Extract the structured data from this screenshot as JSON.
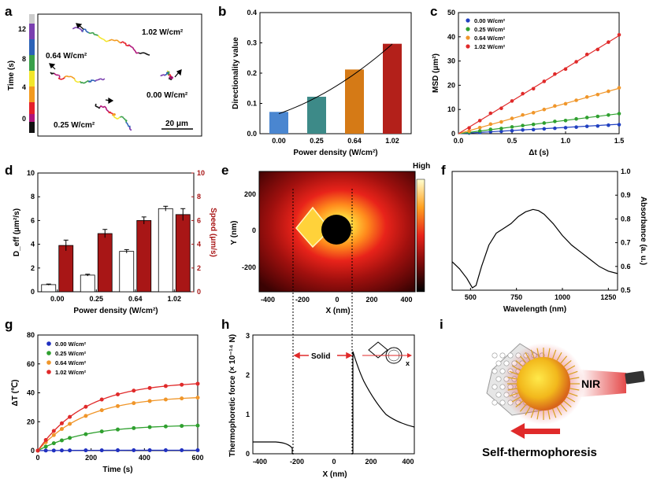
{
  "panels": {
    "a": {
      "label": "a",
      "colorbar_title": "Time (s)",
      "colorbar_ticks": [
        "0",
        "4",
        "8",
        "12"
      ],
      "annotations": [
        "1.02 W/cm²",
        "0.64 W/cm²",
        "0.00 W/cm²",
        "0.25 W/cm²"
      ],
      "scalebar": "20 μm",
      "colors": [
        "#111111",
        "#b0147a",
        "#e5202a",
        "#f39a1e",
        "#f2e62b",
        "#39a04a",
        "#2b62b7",
        "#7a3fb0",
        "#cccccc"
      ]
    },
    "b": {
      "label": "b"
    },
    "c": {
      "label": "c"
    },
    "d": {
      "label": "d"
    },
    "e": {
      "label": "e",
      "ylabel": "Y (nm)",
      "xlabel": "X (nm)",
      "xticks": [
        "-400",
        "-200",
        "0",
        "200",
        "400"
      ],
      "yticks": [
        "200",
        "0",
        "-200"
      ],
      "colorbar_label": "High"
    },
    "f": {
      "label": "f"
    },
    "g": {
      "label": "g"
    },
    "h": {
      "label": "h",
      "ylabel": "Thermophoretic force (× 10⁻¹⁴ N)",
      "xlabel": "X (nm)",
      "solid_label": "Solid",
      "inset_axis": "x",
      "xticks": [
        "-400",
        "-200",
        "0",
        "200",
        "400"
      ],
      "yticks": [
        "0",
        "1",
        "2",
        "3"
      ]
    },
    "i": {
      "label": "i",
      "nir_label": "NIR",
      "caption": "Self-thermophoresis"
    }
  },
  "chart_data": [
    {
      "id": "b",
      "type": "bar",
      "title": "",
      "xlabel": "Power density (W/cm²)",
      "ylabel": "Directionality value",
      "categories": [
        "0.00",
        "0.25",
        "0.64",
        "1.02"
      ],
      "values": [
        0.072,
        0.122,
        0.212,
        0.297
      ],
      "colors": [
        "#4a86d0",
        "#3d8a88",
        "#d57a16",
        "#b3201a"
      ],
      "ylim": [
        0.0,
        0.4
      ],
      "yticks": [
        "0.0",
        "0.1",
        "0.2",
        "0.3",
        "0.4"
      ],
      "fit": true
    },
    {
      "id": "c",
      "type": "scatter",
      "xlabel": "Δt (s)",
      "ylabel": "MSD (μm²)",
      "xlim": [
        0.0,
        1.5
      ],
      "ylim": [
        0,
        50
      ],
      "xticks": [
        "0.0",
        "0.5",
        "1.0",
        "1.5"
      ],
      "yticks": [
        "0",
        "10",
        "20",
        "30",
        "40",
        "50"
      ],
      "legend": "top-left",
      "series": [
        {
          "name": "0.00 W/cm²",
          "color": "#2040c0",
          "slope": 2.6,
          "x": [
            0.1,
            0.2,
            0.3,
            0.4,
            0.5,
            0.6,
            0.7,
            0.8,
            0.9,
            1.0,
            1.1,
            1.2,
            1.3,
            1.4,
            1.5
          ],
          "y": [
            0.3,
            0.5,
            0.8,
            1.0,
            1.2,
            1.5,
            1.7,
            2.0,
            2.2,
            2.5,
            2.7,
            3.0,
            3.2,
            3.5,
            3.7
          ]
        },
        {
          "name": "0.25 W/cm²",
          "color": "#2fa02f",
          "slope": 5.5,
          "x": [
            0.1,
            0.2,
            0.3,
            0.4,
            0.5,
            0.6,
            0.7,
            0.8,
            0.9,
            1.0,
            1.1,
            1.2,
            1.3,
            1.4,
            1.5
          ],
          "y": [
            0.6,
            1.1,
            1.7,
            2.2,
            2.8,
            3.3,
            3.9,
            4.4,
            5.0,
            5.5,
            6.1,
            6.6,
            7.2,
            7.7,
            8.2
          ]
        },
        {
          "name": "0.64 W/cm²",
          "color": "#f0962a",
          "slope": 12.5,
          "x": [
            0.1,
            0.2,
            0.3,
            0.4,
            0.5,
            0.6,
            0.7,
            0.8,
            0.9,
            1.0,
            1.1,
            1.2,
            1.3,
            1.4,
            1.5
          ],
          "y": [
            1.2,
            2.5,
            3.8,
            5.0,
            6.3,
            7.6,
            8.8,
            10.0,
            11.3,
            12.5,
            13.8,
            15.0,
            16.3,
            17.5,
            18.8
          ]
        },
        {
          "name": "1.02 W/cm²",
          "color": "#e02a2a",
          "slope": 27,
          "x": [
            0.1,
            0.2,
            0.3,
            0.4,
            0.5,
            0.6,
            0.7,
            0.8,
            0.9,
            1.0,
            1.1,
            1.2,
            1.3,
            1.4,
            1.5
          ],
          "y": [
            2.7,
            5.4,
            8.1,
            10.8,
            13.5,
            16.2,
            18.9,
            21.6,
            24.3,
            27.0,
            29.7,
            32.4,
            35.1,
            37.8,
            40.5
          ]
        }
      ]
    },
    {
      "id": "d",
      "type": "bar",
      "xlabel": "Power density (W/cm²)",
      "ylabel": "D_eff (μm²/s)",
      "ylabel_right": "Speed (μm/s)",
      "categories": [
        "0.00",
        "0.25",
        "0.64",
        "1.02"
      ],
      "ylim": [
        0,
        10
      ],
      "ylim_right": [
        0,
        10
      ],
      "yticks": [
        "0",
        "2",
        "4",
        "6",
        "8",
        "10"
      ],
      "yticks_right": [
        "0",
        "2",
        "4",
        "6",
        "8",
        "10"
      ],
      "series": [
        {
          "name": "D_eff",
          "color": "#ffffff",
          "values": [
            0.6,
            1.4,
            3.4,
            7.0
          ],
          "errors": [
            0.05,
            0.08,
            0.15,
            0.2
          ]
        },
        {
          "name": "Speed",
          "color": "#a81616",
          "values": [
            3.9,
            4.9,
            6.0,
            6.5
          ],
          "errors": [
            0.45,
            0.35,
            0.3,
            0.5
          ]
        }
      ]
    },
    {
      "id": "f",
      "type": "line",
      "xlabel": "Wavelength (nm)",
      "ylabel": "Absorbance (a. u.)",
      "xlim": [
        400,
        1300
      ],
      "ylim": [
        0.5,
        1.0
      ],
      "xticks": [
        "500",
        "750",
        "1000",
        "1250"
      ],
      "yticks": [
        "0.5",
        "0.6",
        "0.7",
        "0.8",
        "0.9",
        "1.0"
      ],
      "x": [
        400,
        440,
        480,
        510,
        530,
        560,
        600,
        640,
        680,
        720,
        760,
        800,
        840,
        870,
        900,
        950,
        1000,
        1050,
        1100,
        1150,
        1200,
        1250,
        1300
      ],
      "y": [
        0.62,
        0.59,
        0.55,
        0.51,
        0.52,
        0.6,
        0.69,
        0.74,
        0.76,
        0.78,
        0.81,
        0.83,
        0.84,
        0.835,
        0.82,
        0.78,
        0.73,
        0.69,
        0.66,
        0.63,
        0.6,
        0.58,
        0.57
      ]
    },
    {
      "id": "g",
      "type": "scatter",
      "xlabel": "Time (s)",
      "ylabel": "ΔT (℃)",
      "xlim": [
        0,
        600
      ],
      "ylim": [
        0,
        80
      ],
      "xticks": [
        "0",
        "200",
        "400",
        "600"
      ],
      "yticks": [
        "0",
        "20",
        "40",
        "60",
        "80"
      ],
      "legend": "top-left",
      "series": [
        {
          "name": "0.00 W/cm²",
          "color": "#2030c0",
          "amp": 0.3,
          "x": [
            0,
            30,
            60,
            90,
            120,
            180,
            240,
            300,
            360,
            420,
            480,
            540,
            600
          ]
        },
        {
          "name": "0.25 W/cm²",
          "color": "#2fa02f",
          "amp": 18,
          "x": [
            0,
            30,
            60,
            90,
            120,
            180,
            240,
            300,
            360,
            420,
            480,
            540,
            600
          ]
        },
        {
          "name": "0.64 W/cm²",
          "color": "#f0962a",
          "amp": 38,
          "x": [
            0,
            30,
            60,
            90,
            120,
            180,
            240,
            300,
            360,
            420,
            480,
            540,
            600
          ]
        },
        {
          "name": "1.02 W/cm²",
          "color": "#e02a2a",
          "amp": 48,
          "x": [
            0,
            30,
            60,
            90,
            120,
            180,
            240,
            300,
            360,
            420,
            480,
            540,
            600
          ]
        }
      ],
      "tau": 180
    }
  ]
}
